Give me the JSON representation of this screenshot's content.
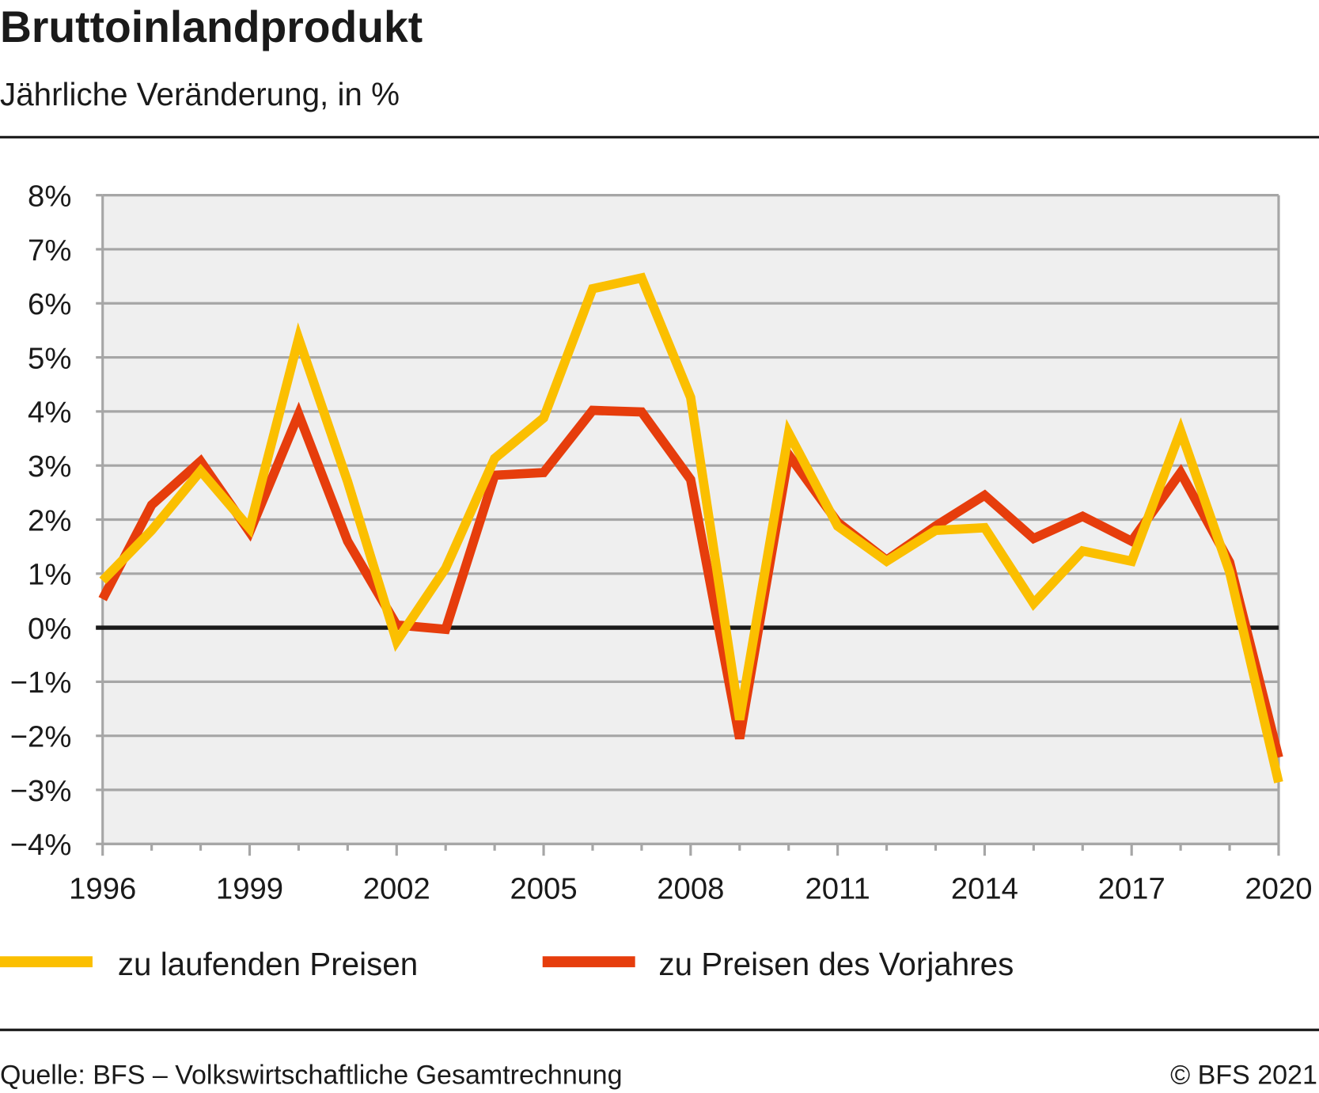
{
  "chart_data": {
    "type": "line",
    "title": "Bruttoinlandprodukt",
    "subtitle": "Jährliche Veränderung, in %",
    "xlabel": "",
    "ylabel": "",
    "ylim": [
      -4,
      8
    ],
    "yticks": [
      "8%",
      "7%",
      "6%",
      "5%",
      "4%",
      "3%",
      "2%",
      "1%",
      "0%",
      "−1%",
      "−2%",
      "−3%",
      "−4%"
    ],
    "ytick_values": [
      8,
      7,
      6,
      5,
      4,
      3,
      2,
      1,
      0,
      -1,
      -2,
      -3,
      -4
    ],
    "xlim": [
      1996,
      2020
    ],
    "xtick_labels": [
      "1996",
      "1999",
      "2002",
      "2005",
      "2008",
      "2011",
      "2014",
      "2017",
      "2020"
    ],
    "grid": true,
    "legend_position": "bottom",
    "x": [
      1996,
      1997,
      1998,
      1999,
      2000,
      2001,
      2002,
      2003,
      2004,
      2005,
      2006,
      2007,
      2008,
      2009,
      2010,
      2011,
      2012,
      2013,
      2014,
      2015,
      2016,
      2017,
      2018,
      2019,
      2020
    ],
    "series": [
      {
        "name": "zu laufenden Preisen",
        "color": "#fbbf00",
        "values": [
          0.87,
          1.8,
          2.9,
          1.84,
          5.35,
          2.7,
          -0.25,
          1.1,
          3.13,
          3.88,
          6.27,
          6.47,
          4.26,
          -1.7,
          3.6,
          1.88,
          1.23,
          1.8,
          1.85,
          0.45,
          1.42,
          1.23,
          3.64,
          1.03,
          -2.86
        ]
      },
      {
        "name": "zu Preisen des Vorjahres",
        "color": "#e63d0c",
        "values": [
          0.53,
          2.27,
          3.08,
          1.77,
          3.95,
          1.6,
          0.05,
          -0.03,
          2.82,
          2.87,
          4.02,
          3.99,
          2.74,
          -2.05,
          3.2,
          1.95,
          1.25,
          1.88,
          2.45,
          1.65,
          2.06,
          1.6,
          2.87,
          1.21,
          -2.4
        ]
      }
    ]
  },
  "footer": {
    "source": "Quelle: BFS – Volkswirtschaftliche Gesamtrechnung",
    "copyright": "© BFS 2021"
  },
  "colors": {
    "plot_bg": "#efefef",
    "grid": "#a6a6a6",
    "zero": "#1a1a1a"
  }
}
